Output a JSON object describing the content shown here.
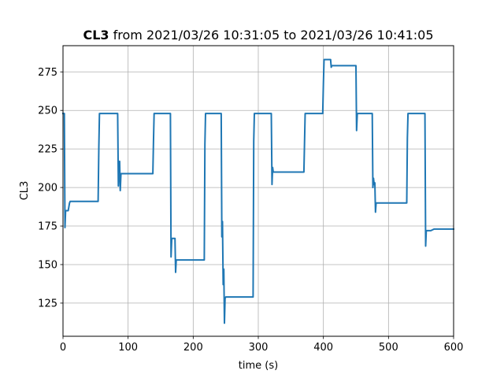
{
  "chart_data": {
    "type": "line",
    "title_bold": "CL3",
    "title_rest": " from 2021/03/26 10:31:05 to 2021/03/26 10:41:05",
    "xlabel": "time (s)",
    "ylabel": "CL3",
    "xlim": [
      0,
      600
    ],
    "ylim": [
      103.5,
      292
    ],
    "xticks": [
      0,
      100,
      200,
      300,
      400,
      500,
      600
    ],
    "yticks": [
      125,
      150,
      175,
      200,
      225,
      250,
      275
    ],
    "grid": true,
    "series": [
      {
        "color": "#1f77b4",
        "x": [
          0,
          2,
          3,
          4,
          5,
          6,
          8,
          10,
          11,
          13,
          20,
          30,
          54,
          55,
          56,
          57,
          60,
          70,
          84,
          85,
          86,
          87,
          88,
          89,
          90,
          100,
          110,
          138,
          139,
          140,
          141,
          150,
          160,
          165,
          166,
          167,
          168,
          172,
          173,
          174,
          175,
          180,
          190,
          200,
          217,
          218,
          219,
          220,
          230,
          243,
          244,
          245,
          246,
          247,
          248,
          249,
          250,
          255,
          260,
          270,
          292,
          293,
          294,
          295,
          300,
          310,
          320,
          321,
          322,
          323,
          324,
          325,
          326,
          330,
          340,
          350,
          370,
          371,
          372,
          373,
          380,
          390,
          399,
          400,
          401,
          402,
          410,
          411,
          412,
          413,
          414,
          415,
          420,
          430,
          450,
          451,
          452,
          453,
          460,
          470,
          475,
          476,
          477,
          478,
          479,
          480,
          481,
          482,
          483,
          490,
          500,
          528,
          529,
          530,
          531,
          540,
          550,
          556,
          557,
          558,
          559,
          560,
          565,
          570,
          580,
          590,
          600
        ],
        "y": [
          248,
          248,
          174,
          185,
          185,
          185,
          185,
          190,
          191,
          191,
          191,
          191,
          191,
          226,
          248,
          248,
          248,
          248,
          248,
          201,
          215,
          217,
          198,
          209,
          209,
          209,
          209,
          209,
          230,
          248,
          248,
          248,
          248,
          248,
          155,
          167,
          167,
          167,
          145,
          153,
          153,
          153,
          153,
          153,
          153,
          228,
          248,
          248,
          248,
          248,
          168,
          178,
          137,
          147,
          112,
          128,
          129,
          129,
          129,
          129,
          129,
          230,
          248,
          248,
          248,
          248,
          248,
          202,
          213,
          210,
          210,
          210,
          210,
          210,
          210,
          210,
          210,
          229,
          248,
          248,
          248,
          248,
          248,
          268,
          283,
          283,
          283,
          283,
          278,
          279,
          279,
          279,
          279,
          279,
          279,
          237,
          248,
          248,
          248,
          248,
          248,
          200,
          206,
          202,
          203,
          184,
          190,
          190,
          190,
          190,
          190,
          190,
          232,
          248,
          248,
          248,
          248,
          248,
          162,
          172,
          172,
          172,
          172,
          173,
          173,
          173,
          173
        ]
      }
    ]
  }
}
